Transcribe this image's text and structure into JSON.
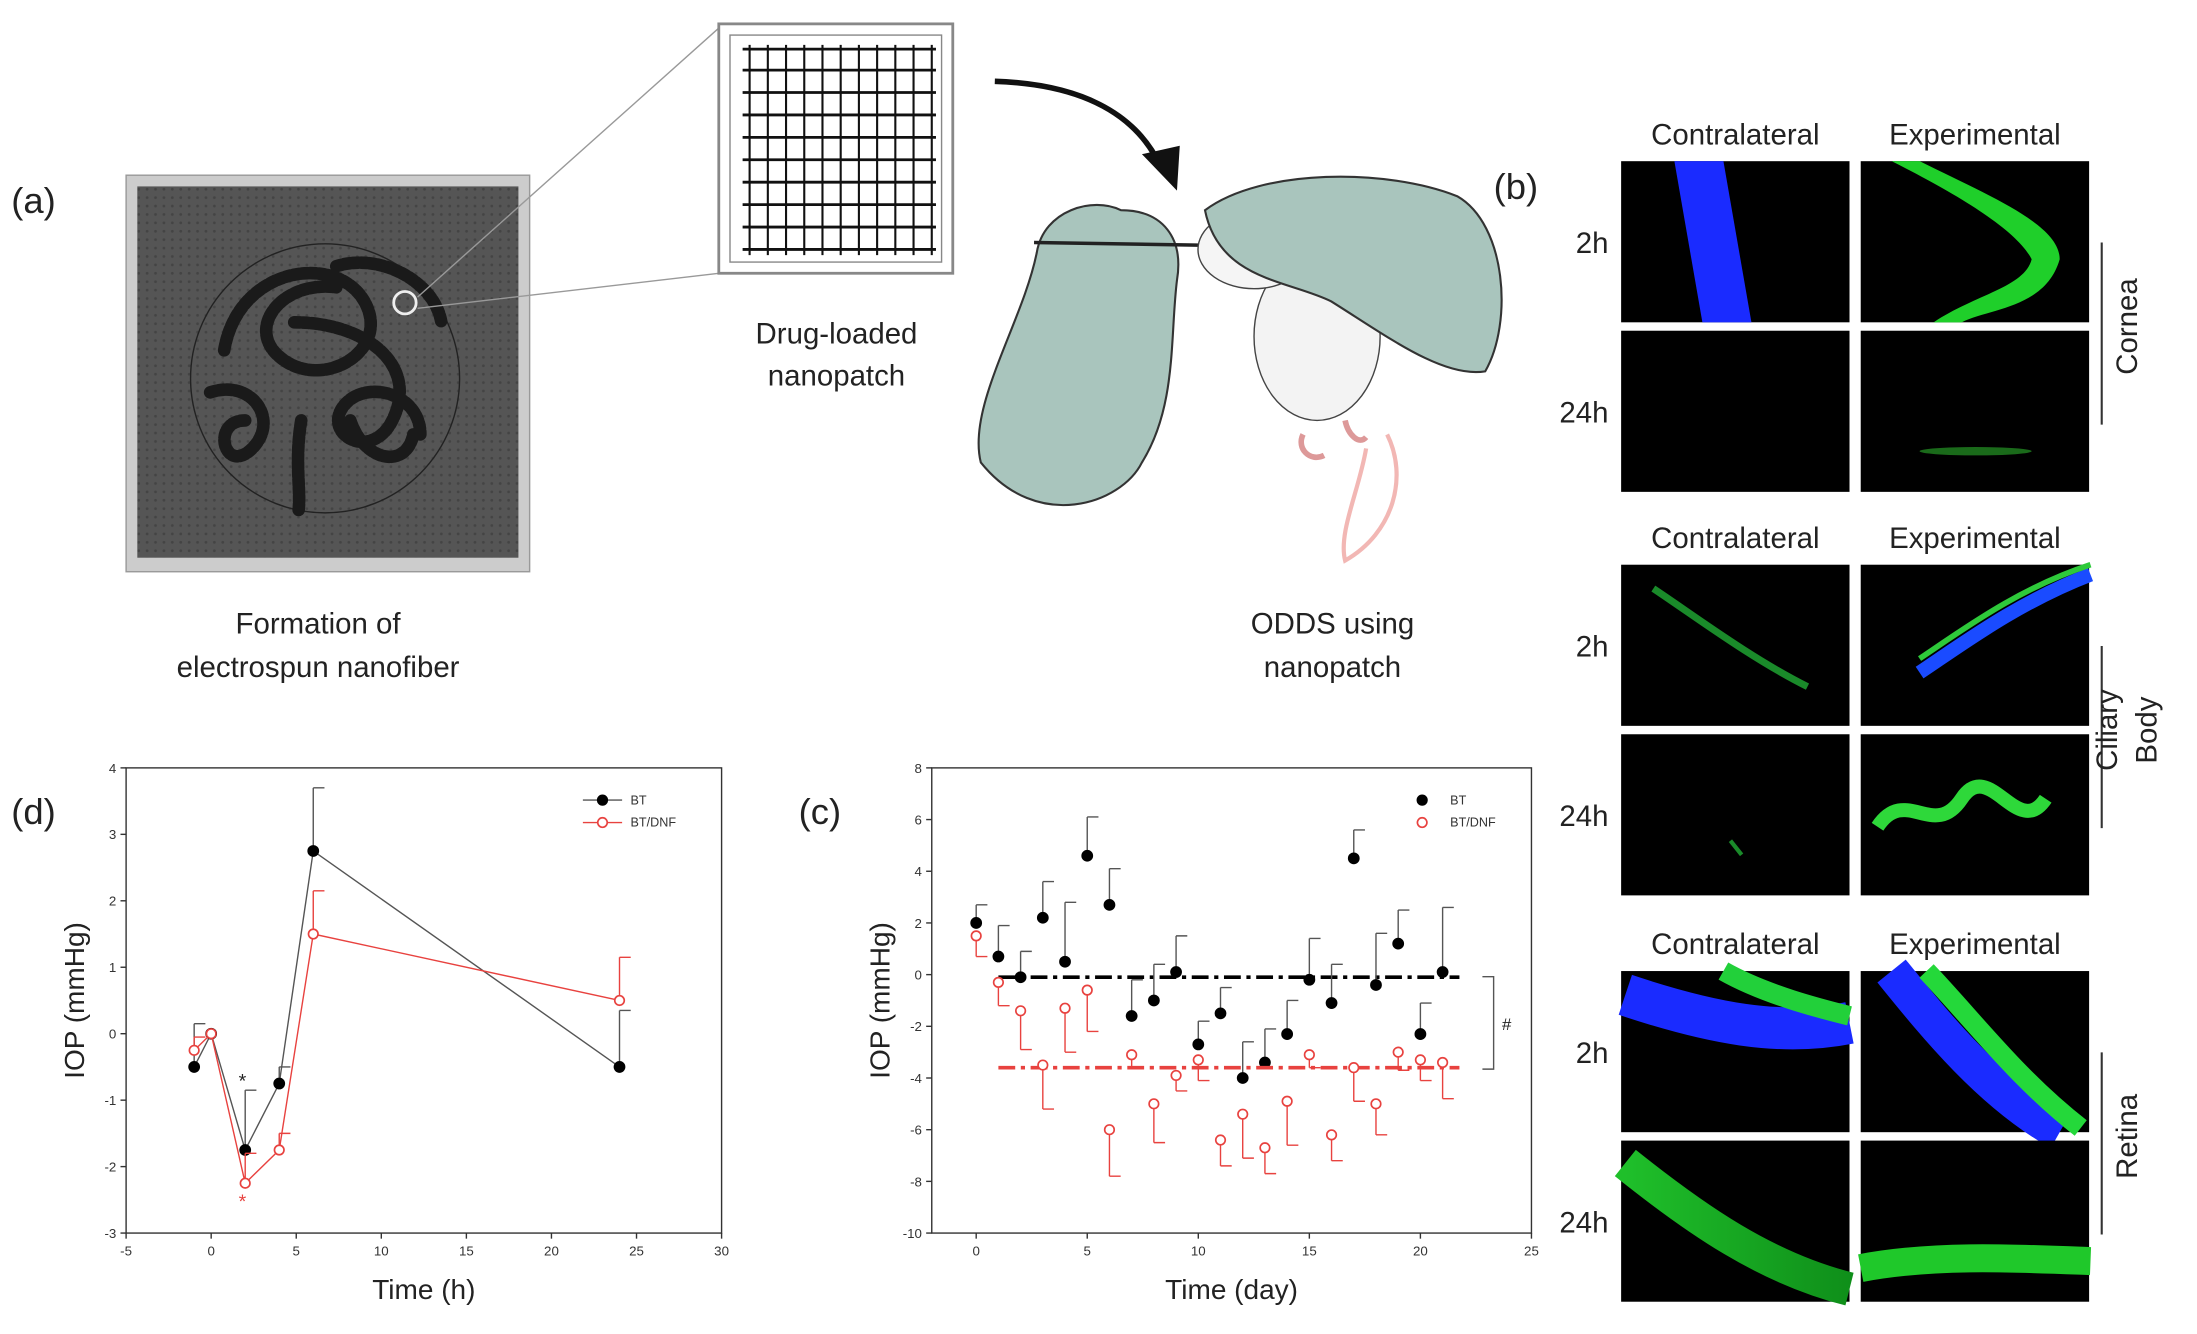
{
  "panel_a": {
    "label": "(a)",
    "nanopatch_caption": [
      "Drug-loaded",
      "nanopatch"
    ],
    "formation_caption": [
      "Formation of",
      "electrospun nanofiber"
    ],
    "odds_caption": [
      "ODDS using",
      "nanopatch"
    ]
  },
  "panel_b": {
    "label": "(b)",
    "groups": [
      {
        "columns": [
          "Contralateral",
          "Experimental"
        ],
        "rows": [
          "2h",
          "24h"
        ],
        "tissue": [
          "Cornea"
        ]
      },
      {
        "columns": [
          "Contralateral",
          "Experimental"
        ],
        "rows": [
          "2h",
          "24h"
        ],
        "tissue": [
          "Ciliary",
          "Body"
        ]
      },
      {
        "columns": [
          "Contralateral",
          "Experimental"
        ],
        "rows": [
          "2h",
          "24h"
        ],
        "tissue": [
          "Retina"
        ]
      }
    ]
  },
  "chart_data": [
    {
      "type": "line",
      "panel": "(d)",
      "x_label": "Time (h)",
      "y_label": "IOP (mmHg)",
      "xlim": [
        -5,
        30
      ],
      "xticks": [
        -5,
        0,
        5,
        10,
        15,
        20,
        25,
        30
      ],
      "ylim": [
        -3,
        4
      ],
      "yticks": [
        -3,
        -2,
        -1,
        0,
        1,
        2,
        3,
        4
      ],
      "annotations": [
        "*",
        "*"
      ],
      "series": [
        {
          "name": "BT",
          "color": "#000000",
          "marker": "filled",
          "error_direction": "up",
          "x": [
            -1,
            0,
            2,
            4,
            6,
            24
          ],
          "values": [
            -0.5,
            0,
            -1.75,
            -0.75,
            2.75,
            -0.5
          ],
          "errors": [
            0.65,
            null,
            0.9,
            0.25,
            0.95,
            0.85
          ]
        },
        {
          "name": "BT/DNF",
          "color": "#e8423f",
          "marker": "open",
          "error_direction": "up",
          "x": [
            -1,
            0,
            2,
            4,
            6,
            24
          ],
          "values": [
            -0.25,
            0,
            -2.25,
            -1.75,
            1.5,
            0.5
          ],
          "errors": [
            0.2,
            null,
            0.45,
            0.25,
            0.65,
            0.65
          ]
        }
      ]
    },
    {
      "type": "scatter",
      "panel": "(c)",
      "x_label": "Time (day)",
      "y_label": "IOP (mmHg)",
      "xlim": [
        -2,
        25
      ],
      "xticks": [
        0,
        5,
        10,
        15,
        20,
        25
      ],
      "ylim": [
        -10,
        8
      ],
      "yticks": [
        -10,
        -8,
        -6,
        -4,
        -2,
        0,
        2,
        4,
        6,
        8
      ],
      "annotations": [
        "#"
      ],
      "series": [
        {
          "name": "BT",
          "color": "#000000",
          "marker": "filled",
          "error_direction": "up",
          "mean": -0.1,
          "x": [
            0,
            1,
            2,
            3,
            4,
            5,
            6,
            7,
            8,
            9,
            10,
            11,
            12,
            13,
            14,
            15,
            16,
            17,
            18,
            19,
            20,
            21
          ],
          "values": [
            2.0,
            0.7,
            -0.1,
            2.2,
            0.5,
            4.6,
            2.7,
            -1.6,
            -1.0,
            0.1,
            -2.7,
            -1.5,
            -4.0,
            -3.4,
            -2.3,
            -0.2,
            -1.1,
            4.5,
            -0.4,
            1.2,
            -2.3,
            0.1
          ],
          "errors": [
            0.7,
            1.2,
            1.0,
            1.4,
            2.3,
            1.5,
            1.4,
            1.4,
            1.4,
            1.4,
            0.9,
            1.0,
            1.4,
            1.3,
            1.3,
            1.6,
            1.5,
            1.1,
            2.0,
            1.3,
            1.2,
            2.5
          ]
        },
        {
          "name": "BT/DNF",
          "color": "#e8423f",
          "marker": "open",
          "error_direction": "down",
          "mean": -3.6,
          "x": [
            0,
            1,
            2,
            3,
            4,
            5,
            6,
            7,
            8,
            9,
            10,
            11,
            12,
            13,
            14,
            15,
            16,
            17,
            18,
            19,
            20,
            21
          ],
          "values": [
            1.5,
            -0.3,
            -1.4,
            -3.5,
            -1.3,
            -0.6,
            -6.0,
            -3.1,
            -5.0,
            -3.9,
            -3.3,
            -6.4,
            -5.4,
            -6.7,
            -4.9,
            -3.1,
            -6.2,
            -3.6,
            -5.0,
            -3.0,
            -3.3,
            -3.4
          ],
          "errors": [
            0.8,
            0.9,
            1.5,
            1.7,
            1.7,
            1.6,
            1.8,
            0.5,
            1.5,
            0.6,
            0.8,
            1.0,
            1.7,
            1.0,
            1.7,
            0.5,
            1.0,
            1.3,
            1.2,
            0.7,
            0.8,
            1.4
          ]
        }
      ]
    }
  ]
}
